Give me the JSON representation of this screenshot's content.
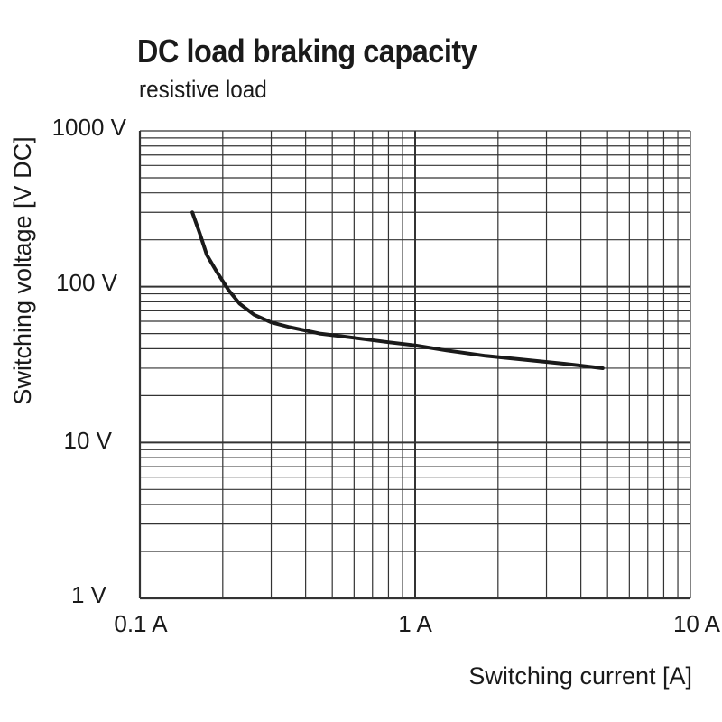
{
  "chart_data": {
    "type": "line",
    "title": "DC load braking capacity",
    "subtitle": "resistive load",
    "xlabel": "Switching current [A]",
    "ylabel": "Switching voltage [V DC]",
    "xscale": "log",
    "yscale": "log",
    "xlim": [
      0.1,
      10
    ],
    "ylim": [
      1,
      1000
    ],
    "grid": true,
    "x_ticks": [
      "0.1 A",
      "1 A",
      "10 A"
    ],
    "y_ticks": [
      "1 V",
      "10 V",
      "100 V",
      "1000 V"
    ],
    "series": [
      {
        "x": [
          0.155,
          0.165,
          0.175,
          0.19,
          0.21,
          0.23,
          0.26,
          0.3,
          0.35,
          0.45,
          0.6,
          0.8,
          1.0,
          1.3,
          1.8,
          2.5,
          3.5,
          4.8
        ],
        "y": [
          300,
          220,
          160,
          125,
          95,
          78,
          66,
          59,
          55,
          50,
          47,
          44,
          42,
          39,
          36,
          34,
          32,
          30
        ]
      }
    ]
  }
}
